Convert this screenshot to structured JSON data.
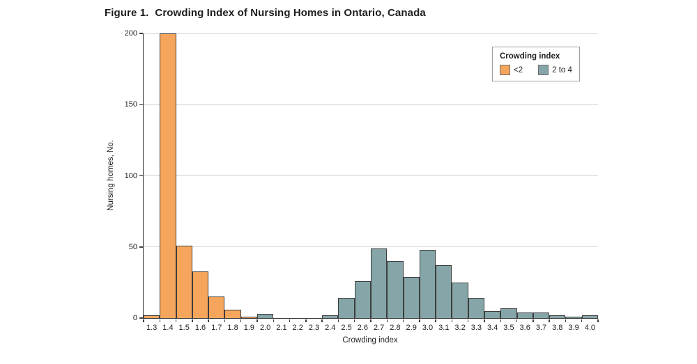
{
  "figure": {
    "label": "Figure 1.",
    "title": "Crowding Index of Nursing Homes in Ontario, Canada"
  },
  "chart_data": {
    "type": "bar",
    "title": "Figure 1. Crowding Index of Nursing Homes in Ontario, Canada",
    "xlabel": "Crowding index",
    "ylabel": "Nursing homes, No.",
    "ylim": [
      0,
      200
    ],
    "yticks": [
      0,
      50,
      100,
      150,
      200
    ],
    "grid": "horizontal",
    "legend": {
      "title": "Crowding index",
      "position": "top-right",
      "items": [
        {
          "label": "<2",
          "color_key": "lt2"
        },
        {
          "label": "2 to 4",
          "color_key": "2to4"
        }
      ]
    },
    "colors": {
      "lt2": "#f5a55c",
      "2to4": "#85a5a8",
      "bar_border": "#3d3d3d",
      "axis": "#3d3d3d",
      "gridline": "#dbdbdb"
    },
    "bins": [
      {
        "x": "1.3",
        "count": 2,
        "group": "lt2"
      },
      {
        "x": "1.4",
        "count": 200,
        "group": "lt2"
      },
      {
        "x": "1.5",
        "count": 51,
        "group": "lt2"
      },
      {
        "x": "1.6",
        "count": 33,
        "group": "lt2"
      },
      {
        "x": "1.7",
        "count": 15,
        "group": "lt2"
      },
      {
        "x": "1.8",
        "count": 6,
        "group": "lt2"
      },
      {
        "x": "1.9",
        "count": 1,
        "group": "lt2"
      },
      {
        "x": "2.0",
        "count": 3,
        "group": "2to4"
      },
      {
        "x": "2.1",
        "count": 0,
        "group": "2to4"
      },
      {
        "x": "2.2",
        "count": 0,
        "group": "2to4"
      },
      {
        "x": "2.3",
        "count": 0,
        "group": "2to4"
      },
      {
        "x": "2.4",
        "count": 2,
        "group": "2to4"
      },
      {
        "x": "2.5",
        "count": 14,
        "group": "2to4"
      },
      {
        "x": "2.6",
        "count": 26,
        "group": "2to4"
      },
      {
        "x": "2.7",
        "count": 49,
        "group": "2to4"
      },
      {
        "x": "2.8",
        "count": 40,
        "group": "2to4"
      },
      {
        "x": "2.9",
        "count": 29,
        "group": "2to4"
      },
      {
        "x": "3.0",
        "count": 48,
        "group": "2to4"
      },
      {
        "x": "3.1",
        "count": 37,
        "group": "2to4"
      },
      {
        "x": "3.2",
        "count": 25,
        "group": "2to4"
      },
      {
        "x": "3.3",
        "count": 14,
        "group": "2to4"
      },
      {
        "x": "3.4",
        "count": 5,
        "group": "2to4"
      },
      {
        "x": "3.5",
        "count": 7,
        "group": "2to4"
      },
      {
        "x": "3.6",
        "count": 4,
        "group": "2to4"
      },
      {
        "x": "3.7",
        "count": 4,
        "group": "2to4"
      },
      {
        "x": "3.8",
        "count": 2,
        "group": "2to4"
      },
      {
        "x": "3.9",
        "count": 1,
        "group": "2to4"
      },
      {
        "x": "4.0",
        "count": 2,
        "group": "2to4"
      }
    ]
  }
}
